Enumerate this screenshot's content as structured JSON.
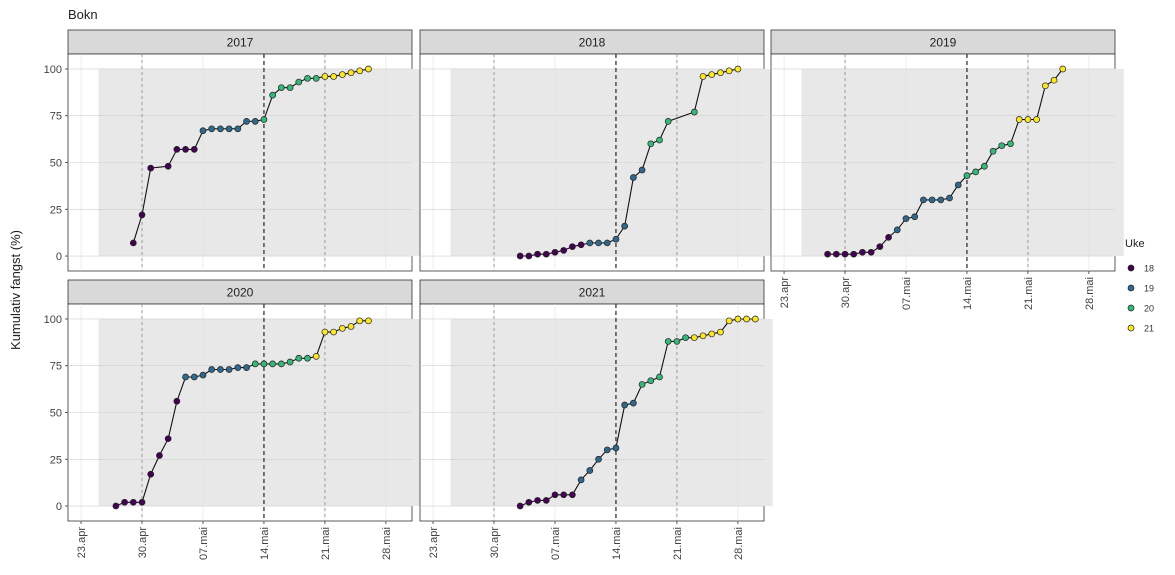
{
  "chart_data": {
    "type": "line",
    "title": "Bokn",
    "ylabel": "Kumulativ fangst (%)",
    "xlabel": "",
    "ylim": [
      0,
      100
    ],
    "y_ticks": [
      0,
      25,
      50,
      75,
      100
    ],
    "x_range_days": [
      115,
      152
    ],
    "x_ticks": [
      {
        "day": 113,
        "label": "23.apr"
      },
      {
        "day": 120,
        "label": "30.apr"
      },
      {
        "day": 127,
        "label": "07.mai"
      },
      {
        "day": 134,
        "label": "14.mai"
      },
      {
        "day": 141,
        "label": "21.mai"
      },
      {
        "day": 148,
        "label": "28.mai"
      }
    ],
    "vlines_solid": [
      134
    ],
    "vlines_dashed": [
      120,
      141
    ],
    "legend": {
      "title": "Uke",
      "position": "right",
      "entries": [
        {
          "label": "18",
          "color": "#440154"
        },
        {
          "label": "19",
          "color": "#31688e"
        },
        {
          "label": "20",
          "color": "#35b779"
        },
        {
          "label": "21",
          "color": "#fde725"
        }
      ]
    },
    "grid": true,
    "facets": [
      {
        "label": "2017",
        "points": [
          {
            "x": 119,
            "y": 7,
            "week": "18"
          },
          {
            "x": 120,
            "y": 22,
            "week": "18"
          },
          {
            "x": 121,
            "y": 47,
            "week": "18"
          },
          {
            "x": 123,
            "y": 48,
            "week": "18"
          },
          {
            "x": 124,
            "y": 57,
            "week": "18"
          },
          {
            "x": 125,
            "y": 57,
            "week": "18"
          },
          {
            "x": 126,
            "y": 57,
            "week": "18"
          },
          {
            "x": 127,
            "y": 67,
            "week": "19"
          },
          {
            "x": 128,
            "y": 68,
            "week": "19"
          },
          {
            "x": 129,
            "y": 68,
            "week": "19"
          },
          {
            "x": 130,
            "y": 68,
            "week": "19"
          },
          {
            "x": 131,
            "y": 68,
            "week": "19"
          },
          {
            "x": 132,
            "y": 72,
            "week": "19"
          },
          {
            "x": 133,
            "y": 72,
            "week": "19"
          },
          {
            "x": 134,
            "y": 73,
            "week": "20"
          },
          {
            "x": 135,
            "y": 86,
            "week": "20"
          },
          {
            "x": 136,
            "y": 90,
            "week": "20"
          },
          {
            "x": 137,
            "y": 90,
            "week": "20"
          },
          {
            "x": 138,
            "y": 93,
            "week": "20"
          },
          {
            "x": 139,
            "y": 95,
            "week": "20"
          },
          {
            "x": 140,
            "y": 95,
            "week": "20"
          },
          {
            "x": 141,
            "y": 96,
            "week": "21"
          },
          {
            "x": 142,
            "y": 96,
            "week": "21"
          },
          {
            "x": 143,
            "y": 97,
            "week": "21"
          },
          {
            "x": 144,
            "y": 98,
            "week": "21"
          },
          {
            "x": 145,
            "y": 99,
            "week": "21"
          },
          {
            "x": 146,
            "y": 100,
            "week": "21"
          }
        ]
      },
      {
        "label": "2018",
        "points": [
          {
            "x": 123,
            "y": 0,
            "week": "18"
          },
          {
            "x": 124,
            "y": 0,
            "week": "18"
          },
          {
            "x": 125,
            "y": 1,
            "week": "18"
          },
          {
            "x": 126,
            "y": 1,
            "week": "18"
          },
          {
            "x": 127,
            "y": 2,
            "week": "18"
          },
          {
            "x": 128,
            "y": 3,
            "week": "18"
          },
          {
            "x": 129,
            "y": 5,
            "week": "18"
          },
          {
            "x": 130,
            "y": 6,
            "week": "18"
          },
          {
            "x": 131,
            "y": 7,
            "week": "19"
          },
          {
            "x": 132,
            "y": 7,
            "week": "19"
          },
          {
            "x": 133,
            "y": 7,
            "week": "19"
          },
          {
            "x": 134,
            "y": 9,
            "week": "19"
          },
          {
            "x": 135,
            "y": 16,
            "week": "19"
          },
          {
            "x": 136,
            "y": 42,
            "week": "19"
          },
          {
            "x": 137,
            "y": 46,
            "week": "19"
          },
          {
            "x": 138,
            "y": 60,
            "week": "20"
          },
          {
            "x": 139,
            "y": 62,
            "week": "20"
          },
          {
            "x": 140,
            "y": 72,
            "week": "20"
          },
          {
            "x": 143,
            "y": 77,
            "week": "20"
          },
          {
            "x": 144,
            "y": 96,
            "week": "21"
          },
          {
            "x": 145,
            "y": 97,
            "week": "21"
          },
          {
            "x": 146,
            "y": 98,
            "week": "21"
          },
          {
            "x": 147,
            "y": 99,
            "week": "21"
          },
          {
            "x": 148,
            "y": 100,
            "week": "21"
          }
        ]
      },
      {
        "label": "2019",
        "points": [
          {
            "x": 118,
            "y": 1,
            "week": "18"
          },
          {
            "x": 119,
            "y": 1,
            "week": "18"
          },
          {
            "x": 120,
            "y": 1,
            "week": "18"
          },
          {
            "x": 121,
            "y": 1,
            "week": "18"
          },
          {
            "x": 122,
            "y": 2,
            "week": "18"
          },
          {
            "x": 123,
            "y": 2,
            "week": "18"
          },
          {
            "x": 124,
            "y": 5,
            "week": "18"
          },
          {
            "x": 125,
            "y": 10,
            "week": "18"
          },
          {
            "x": 126,
            "y": 14,
            "week": "19"
          },
          {
            "x": 127,
            "y": 20,
            "week": "19"
          },
          {
            "x": 128,
            "y": 21,
            "week": "19"
          },
          {
            "x": 129,
            "y": 30,
            "week": "19"
          },
          {
            "x": 130,
            "y": 30,
            "week": "19"
          },
          {
            "x": 131,
            "y": 30,
            "week": "19"
          },
          {
            "x": 132,
            "y": 31,
            "week": "19"
          },
          {
            "x": 133,
            "y": 38,
            "week": "19"
          },
          {
            "x": 134,
            "y": 43,
            "week": "20"
          },
          {
            "x": 135,
            "y": 45,
            "week": "20"
          },
          {
            "x": 136,
            "y": 48,
            "week": "20"
          },
          {
            "x": 137,
            "y": 56,
            "week": "20"
          },
          {
            "x": 138,
            "y": 59,
            "week": "20"
          },
          {
            "x": 139,
            "y": 60,
            "week": "20"
          },
          {
            "x": 140,
            "y": 73,
            "week": "21"
          },
          {
            "x": 141,
            "y": 73,
            "week": "21"
          },
          {
            "x": 142,
            "y": 73,
            "week": "21"
          },
          {
            "x": 143,
            "y": 91,
            "week": "21"
          },
          {
            "x": 144,
            "y": 94,
            "week": "21"
          },
          {
            "x": 145,
            "y": 100,
            "week": "21"
          }
        ]
      },
      {
        "label": "2020",
        "points": [
          {
            "x": 117,
            "y": 0,
            "week": "18"
          },
          {
            "x": 118,
            "y": 2,
            "week": "18"
          },
          {
            "x": 119,
            "y": 2,
            "week": "18"
          },
          {
            "x": 120,
            "y": 2,
            "week": "18"
          },
          {
            "x": 121,
            "y": 17,
            "week": "18"
          },
          {
            "x": 122,
            "y": 27,
            "week": "18"
          },
          {
            "x": 123,
            "y": 36,
            "week": "18"
          },
          {
            "x": 124,
            "y": 56,
            "week": "18"
          },
          {
            "x": 125,
            "y": 69,
            "week": "19"
          },
          {
            "x": 126,
            "y": 69,
            "week": "19"
          },
          {
            "x": 127,
            "y": 70,
            "week": "19"
          },
          {
            "x": 128,
            "y": 73,
            "week": "19"
          },
          {
            "x": 129,
            "y": 73,
            "week": "19"
          },
          {
            "x": 130,
            "y": 73,
            "week": "19"
          },
          {
            "x": 131,
            "y": 74,
            "week": "19"
          },
          {
            "x": 132,
            "y": 74,
            "week": "19"
          },
          {
            "x": 133,
            "y": 76,
            "week": "20"
          },
          {
            "x": 134,
            "y": 76,
            "week": "20"
          },
          {
            "x": 135,
            "y": 76,
            "week": "20"
          },
          {
            "x": 136,
            "y": 76,
            "week": "20"
          },
          {
            "x": 137,
            "y": 77,
            "week": "20"
          },
          {
            "x": 138,
            "y": 79,
            "week": "20"
          },
          {
            "x": 139,
            "y": 79,
            "week": "20"
          },
          {
            "x": 140,
            "y": 80,
            "week": "21"
          },
          {
            "x": 141,
            "y": 93,
            "week": "21"
          },
          {
            "x": 142,
            "y": 93,
            "week": "21"
          },
          {
            "x": 143,
            "y": 95,
            "week": "21"
          },
          {
            "x": 144,
            "y": 96,
            "week": "21"
          },
          {
            "x": 145,
            "y": 99,
            "week": "21"
          },
          {
            "x": 146,
            "y": 99,
            "week": "21"
          }
        ]
      },
      {
        "label": "2021",
        "points": [
          {
            "x": 123,
            "y": 0,
            "week": "18"
          },
          {
            "x": 124,
            "y": 2,
            "week": "18"
          },
          {
            "x": 125,
            "y": 3,
            "week": "18"
          },
          {
            "x": 126,
            "y": 3,
            "week": "18"
          },
          {
            "x": 127,
            "y": 6,
            "week": "18"
          },
          {
            "x": 128,
            "y": 6,
            "week": "18"
          },
          {
            "x": 129,
            "y": 6,
            "week": "18"
          },
          {
            "x": 130,
            "y": 14,
            "week": "19"
          },
          {
            "x": 131,
            "y": 19,
            "week": "19"
          },
          {
            "x": 132,
            "y": 25,
            "week": "19"
          },
          {
            "x": 133,
            "y": 30,
            "week": "19"
          },
          {
            "x": 134,
            "y": 31,
            "week": "19"
          },
          {
            "x": 135,
            "y": 54,
            "week": "19"
          },
          {
            "x": 136,
            "y": 55,
            "week": "19"
          },
          {
            "x": 137,
            "y": 65,
            "week": "20"
          },
          {
            "x": 138,
            "y": 67,
            "week": "20"
          },
          {
            "x": 139,
            "y": 69,
            "week": "20"
          },
          {
            "x": 140,
            "y": 88,
            "week": "20"
          },
          {
            "x": 141,
            "y": 88,
            "week": "20"
          },
          {
            "x": 142,
            "y": 90,
            "week": "20"
          },
          {
            "x": 143,
            "y": 90,
            "week": "21"
          },
          {
            "x": 144,
            "y": 91,
            "week": "21"
          },
          {
            "x": 145,
            "y": 92,
            "week": "21"
          },
          {
            "x": 146,
            "y": 93,
            "week": "21"
          },
          {
            "x": 147,
            "y": 99,
            "week": "21"
          },
          {
            "x": 148,
            "y": 100,
            "week": "21"
          },
          {
            "x": 149,
            "y": 100,
            "week": "21"
          },
          {
            "x": 150,
            "y": 100,
            "week": "21"
          }
        ]
      }
    ]
  }
}
